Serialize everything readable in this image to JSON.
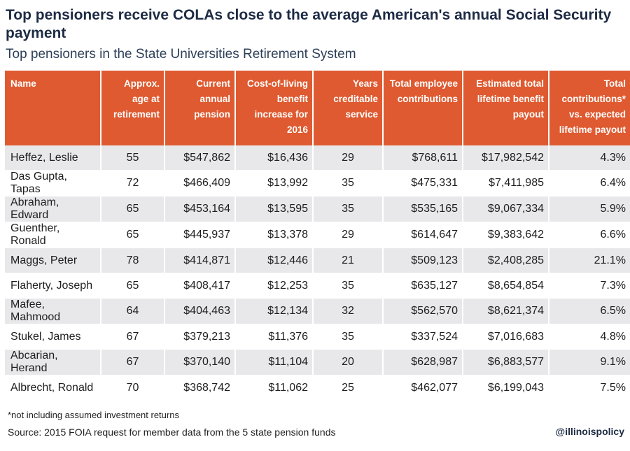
{
  "title": "Top pensioners receive COLAs close to the average American's annual Social Security payment",
  "subtitle": "Top pensioners in the State Universities Retirement System",
  "table": {
    "headers": [
      "Name",
      "Approx. age at retirement",
      "Current annual pension",
      "Cost-of-living benefit increase for 2016",
      "Years creditable service",
      "Total employee contributions",
      "Estimated total lifetime benefit payout",
      "Total contributions* vs. expected lifetime payout"
    ],
    "rows": [
      [
        "Heffez, Leslie",
        "55",
        "$547,862",
        "$16,436",
        "29",
        "$768,611",
        "$17,982,542",
        "4.3%"
      ],
      [
        "Das Gupta, Tapas",
        "72",
        "$466,409",
        "$13,992",
        "35",
        "$475,331",
        "$7,411,985",
        "6.4%"
      ],
      [
        "Abraham, Edward",
        "65",
        "$453,164",
        "$13,595",
        "35",
        "$535,165",
        "$9,067,334",
        "5.9%"
      ],
      [
        "Guenther, Ronald",
        "65",
        "$445,937",
        "$13,378",
        "29",
        "$614,647",
        "$9,383,642",
        "6.6%"
      ],
      [
        "Maggs, Peter",
        "78",
        "$414,871",
        "$12,446",
        "21",
        "$509,123",
        "$2,408,285",
        "21.1%"
      ],
      [
        "Flaherty, Joseph",
        "65",
        "$408,417",
        "$12,253",
        "35",
        "$635,127",
        "$8,654,854",
        "7.3%"
      ],
      [
        "Mafee, Mahmood",
        "64",
        "$404,463",
        "$12,134",
        "32",
        "$562,570",
        "$8,621,374",
        "6.5%"
      ],
      [
        "Stukel, James",
        "67",
        "$379,213",
        "$11,376",
        "35",
        "$337,524",
        "$7,016,683",
        "4.8%"
      ],
      [
        "Abcarian, Herand",
        "67",
        "$370,140",
        "$11,104",
        "20",
        "$628,987",
        "$6,883,577",
        "9.1%"
      ],
      [
        "Albrecht, Ronald",
        "70",
        "$368,742",
        "$11,062",
        "25",
        "$462,077",
        "$6,199,043",
        "7.5%"
      ]
    ]
  },
  "footnote": "*not including assumed investment returns",
  "source": "Source: 2015 FOIA request for member data from the 5 state pension funds",
  "brand": "@illinoispolicy",
  "colors": {
    "header_bg": "#df5a30",
    "stripe": "#e8e8ea",
    "title": "#1d2b44"
  }
}
